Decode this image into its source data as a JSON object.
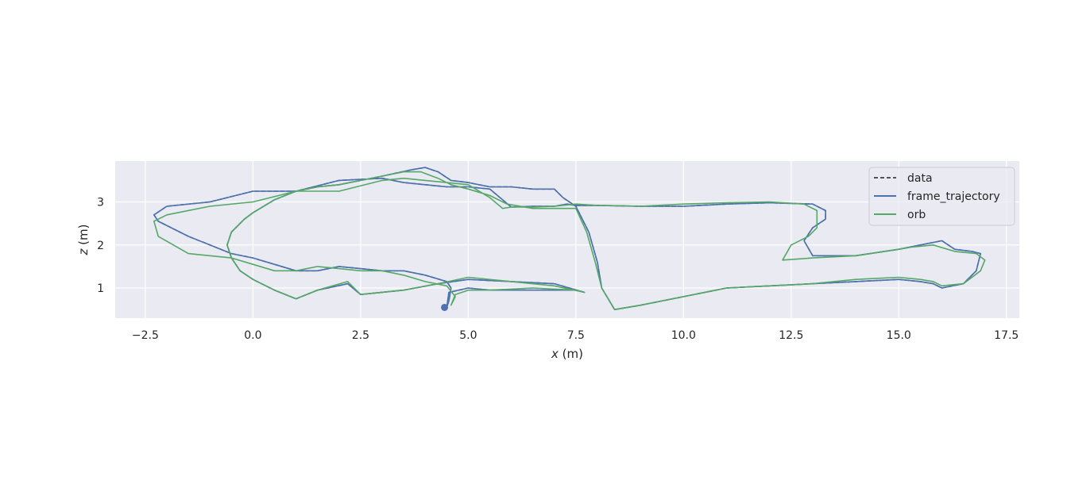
{
  "chart_data": {
    "type": "line",
    "title": "",
    "xlabel_var": "x",
    "xlabel_unit": " (m)",
    "ylabel_var": "z",
    "ylabel_unit": " (m)",
    "xlim": [
      -3.2,
      17.8
    ],
    "ylim": [
      0.3,
      3.95
    ],
    "xticks": [
      -2.5,
      0.0,
      2.5,
      5.0,
      7.5,
      10.0,
      12.5,
      15.0,
      17.5
    ],
    "xtick_labels": [
      "−2.5",
      "0.0",
      "2.5",
      "5.0",
      "7.5",
      "10.0",
      "12.5",
      "15.0",
      "17.5"
    ],
    "yticks": [
      1,
      2,
      3
    ],
    "ytick_labels": [
      "1",
      "2",
      "3"
    ],
    "grid": true,
    "legend_position": "top-right",
    "background_color": "#eaeaf2",
    "series": [
      {
        "name": "data",
        "color": "#555555",
        "style": "dashed",
        "x": [
          4.5,
          4.55,
          5.0,
          5.5,
          6.5,
          7.5,
          7.7,
          7.0,
          6.0,
          5.0,
          4.3,
          3.5,
          2.5,
          2.2,
          1.5,
          1.0,
          0.5,
          0.0,
          -0.3,
          -0.5,
          -0.6,
          -0.5,
          -0.2,
          0.0,
          0.5,
          1.0,
          1.5,
          2.0,
          2.5,
          3.0,
          3.7,
          4.0,
          4.3,
          4.6,
          5.0,
          5.5,
          6.0,
          6.5,
          7.0,
          7.2,
          7.5,
          7.8,
          8.0,
          8.1,
          8.4,
          9.0,
          10.0,
          11.0,
          12.0,
          13.0,
          14.0,
          15.0,
          15.5,
          15.8,
          16.0,
          16.5,
          16.8,
          16.9,
          16.7,
          16.3,
          16.0,
          15.5,
          15.0,
          14.0,
          13.0,
          12.8,
          13.0,
          13.3,
          13.3,
          13.0,
          12.0,
          11.0,
          10.0,
          9.0,
          8.0,
          7.5,
          7.3,
          7.0,
          6.5,
          6.0,
          5.5,
          5.0,
          4.5,
          4.0,
          3.5,
          3.0,
          2.0,
          1.0,
          0.0,
          -1.0,
          -2.0,
          -2.3,
          -2.2,
          -1.5,
          -0.5,
          0.0,
          0.5,
          1.0,
          1.5,
          2.0,
          2.5,
          3.0,
          3.5,
          4.0,
          4.5,
          4.6,
          4.55,
          4.5
        ],
        "y": [
          0.55,
          0.9,
          1.0,
          0.95,
          0.95,
          0.95,
          0.9,
          1.1,
          1.15,
          1.2,
          1.1,
          0.95,
          0.85,
          1.1,
          0.95,
          0.75,
          0.95,
          1.2,
          1.4,
          1.7,
          2.0,
          2.3,
          2.6,
          2.75,
          3.05,
          3.25,
          3.35,
          3.4,
          3.5,
          3.6,
          3.75,
          3.8,
          3.7,
          3.5,
          3.45,
          3.35,
          3.35,
          3.3,
          3.3,
          3.1,
          2.9,
          2.3,
          1.6,
          1.0,
          0.5,
          0.6,
          0.8,
          1.0,
          1.05,
          1.1,
          1.15,
          1.2,
          1.15,
          1.1,
          1.0,
          1.1,
          1.4,
          1.8,
          1.85,
          1.9,
          2.1,
          2.0,
          1.9,
          1.75,
          1.75,
          2.1,
          2.4,
          2.6,
          2.8,
          2.95,
          2.98,
          2.95,
          2.9,
          2.9,
          2.92,
          2.92,
          2.95,
          2.9,
          2.9,
          2.88,
          3.3,
          3.35,
          3.35,
          3.4,
          3.45,
          3.55,
          3.5,
          3.25,
          3.25,
          3.0,
          2.9,
          2.7,
          2.55,
          2.2,
          1.8,
          1.7,
          1.55,
          1.4,
          1.4,
          1.5,
          1.45,
          1.4,
          1.4,
          1.3,
          1.15,
          1.0,
          0.7,
          0.55
        ]
      },
      {
        "name": "frame_trajectory",
        "color": "#4c72b0",
        "style": "solid",
        "x": [
          4.5,
          4.55,
          5.0,
          5.5,
          6.5,
          7.5,
          7.7,
          7.0,
          6.0,
          5.0,
          4.3,
          3.5,
          2.5,
          2.2,
          1.5,
          1.0,
          0.5,
          0.0,
          -0.3,
          -0.5,
          -0.6,
          -0.5,
          -0.2,
          0.0,
          0.5,
          1.0,
          1.5,
          2.0,
          2.5,
          3.0,
          3.7,
          4.0,
          4.3,
          4.6,
          5.0,
          5.5,
          6.0,
          6.5,
          7.0,
          7.2,
          7.5,
          7.8,
          8.0,
          8.1,
          8.4,
          9.0,
          10.0,
          11.0,
          12.0,
          13.0,
          14.0,
          15.0,
          15.5,
          15.8,
          16.0,
          16.5,
          16.8,
          16.9,
          16.7,
          16.3,
          16.0,
          15.5,
          15.0,
          14.0,
          13.0,
          12.8,
          13.0,
          13.3,
          13.3,
          13.0,
          12.0,
          11.0,
          10.0,
          9.0,
          8.0,
          7.5,
          7.3,
          7.0,
          6.5,
          6.0,
          5.5,
          5.0,
          4.5,
          4.0,
          3.5,
          3.0,
          2.0,
          1.0,
          0.0,
          -1.0,
          -2.0,
          -2.3,
          -2.2,
          -1.5,
          -0.5,
          0.0,
          0.5,
          1.0,
          1.5,
          2.0,
          2.5,
          3.0,
          3.5,
          4.0,
          4.5,
          4.6,
          4.55,
          4.5
        ],
        "y": [
          0.55,
          0.9,
          1.0,
          0.95,
          0.95,
          0.95,
          0.9,
          1.1,
          1.15,
          1.2,
          1.1,
          0.95,
          0.85,
          1.1,
          0.95,
          0.75,
          0.95,
          1.2,
          1.4,
          1.7,
          2.0,
          2.3,
          2.6,
          2.75,
          3.05,
          3.25,
          3.35,
          3.4,
          3.5,
          3.6,
          3.75,
          3.8,
          3.7,
          3.5,
          3.45,
          3.35,
          3.35,
          3.3,
          3.3,
          3.1,
          2.9,
          2.3,
          1.6,
          1.0,
          0.5,
          0.6,
          0.8,
          1.0,
          1.05,
          1.1,
          1.15,
          1.2,
          1.15,
          1.1,
          1.0,
          1.1,
          1.4,
          1.8,
          1.85,
          1.9,
          2.1,
          2.0,
          1.9,
          1.75,
          1.75,
          2.1,
          2.4,
          2.6,
          2.8,
          2.95,
          2.98,
          2.95,
          2.9,
          2.9,
          2.92,
          2.92,
          2.95,
          2.9,
          2.9,
          2.88,
          3.3,
          3.35,
          3.35,
          3.4,
          3.45,
          3.55,
          3.5,
          3.25,
          3.25,
          3.0,
          2.9,
          2.7,
          2.55,
          2.2,
          1.8,
          1.7,
          1.55,
          1.4,
          1.4,
          1.5,
          1.45,
          1.4,
          1.4,
          1.3,
          1.15,
          1.0,
          0.7,
          0.55
        ]
      },
      {
        "name": "orb",
        "color": "#55a868",
        "style": "solid",
        "x": [
          4.6,
          4.7,
          5.0,
          5.5,
          6.5,
          7.5,
          7.7,
          7.0,
          6.0,
          5.0,
          4.3,
          3.5,
          2.5,
          2.2,
          1.5,
          1.0,
          0.5,
          0.0,
          -0.3,
          -0.5,
          -0.6,
          -0.5,
          -0.2,
          0.0,
          0.5,
          1.0,
          1.5,
          2.0,
          2.5,
          3.0,
          3.5,
          3.9,
          4.3,
          4.6,
          5.0,
          5.5,
          5.9,
          6.5,
          7.0,
          7.2,
          7.5,
          7.75,
          7.95,
          8.1,
          8.4,
          9.0,
          10.0,
          11.0,
          12.0,
          13.0,
          14.0,
          15.0,
          15.5,
          15.8,
          16.0,
          16.5,
          16.9,
          17.0,
          16.8,
          16.3,
          15.8,
          15.3,
          15.0,
          14.0,
          13.0,
          12.3,
          12.5,
          12.9,
          13.1,
          13.1,
          12.8,
          12.0,
          11.0,
          10.0,
          9.0,
          8.0,
          7.5,
          7.0,
          6.5,
          6.0,
          5.8,
          5.5,
          5.0,
          4.5,
          4.0,
          3.5,
          3.0,
          2.0,
          1.0,
          0.0,
          -1.0,
          -2.0,
          -2.3,
          -2.2,
          -1.5,
          -0.5,
          0.0,
          0.5,
          1.0,
          1.5,
          2.0,
          2.5,
          3.0,
          3.5,
          4.0,
          4.5,
          4.7,
          4.6
        ],
        "y": [
          0.6,
          0.85,
          0.95,
          0.95,
          1.0,
          0.95,
          0.9,
          1.05,
          1.15,
          1.25,
          1.1,
          0.95,
          0.85,
          1.15,
          0.95,
          0.75,
          0.95,
          1.2,
          1.4,
          1.7,
          2.0,
          2.3,
          2.6,
          2.75,
          3.05,
          3.25,
          3.35,
          3.4,
          3.5,
          3.6,
          3.7,
          3.7,
          3.55,
          3.4,
          3.3,
          3.15,
          2.95,
          2.85,
          2.85,
          2.85,
          2.85,
          2.3,
          1.6,
          1.0,
          0.5,
          0.6,
          0.8,
          1.0,
          1.05,
          1.1,
          1.2,
          1.25,
          1.2,
          1.15,
          1.05,
          1.1,
          1.4,
          1.65,
          1.8,
          1.85,
          2.0,
          1.95,
          1.9,
          1.75,
          1.7,
          1.65,
          2.0,
          2.2,
          2.4,
          2.8,
          2.95,
          3.0,
          2.98,
          2.95,
          2.9,
          2.92,
          2.95,
          2.9,
          2.88,
          2.88,
          2.85,
          3.1,
          3.4,
          3.45,
          3.5,
          3.55,
          3.5,
          3.25,
          3.25,
          3.0,
          2.9,
          2.7,
          2.55,
          2.2,
          1.8,
          1.7,
          1.55,
          1.4,
          1.4,
          1.5,
          1.45,
          1.4,
          1.4,
          1.3,
          1.15,
          1.05,
          0.8,
          0.6
        ]
      }
    ],
    "start_marker_color": "#4c72b0",
    "start_marker": {
      "x": 4.45,
      "y": 0.55
    }
  }
}
